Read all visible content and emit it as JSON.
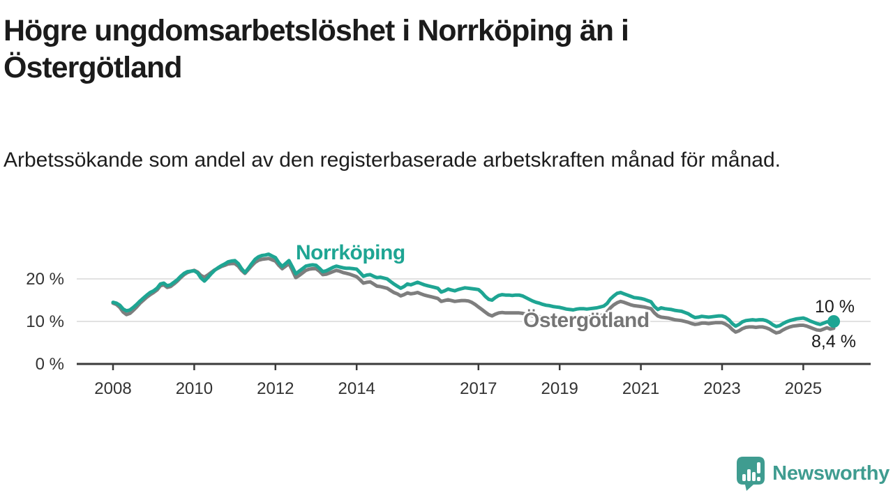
{
  "header": {
    "title": "Högre ungdomsarbetslöshet i Norrköping än i Östergötland",
    "subtitle": "Arbetssökande som andel av den registerbaserade arbetskraften månad för månad."
  },
  "chart_data": {
    "type": "line",
    "title": "Högre ungdomsarbetslöshet i Norrköping än i Östergötland",
    "subtitle": "Arbetssökande som andel av den registerbaserade arbetskraften månad för månad.",
    "x_unit": "month",
    "x_start": "2008-01",
    "x_end": "2025-10",
    "x_tick_years": [
      2008,
      2010,
      2012,
      2014,
      2017,
      2019,
      2021,
      2023,
      2025
    ],
    "y_ticks": [
      {
        "value": 0,
        "label": "0 %"
      },
      {
        "value": 10,
        "label": "10 %"
      },
      {
        "value": 20,
        "label": "20 %"
      }
    ],
    "ylim": [
      0,
      27
    ],
    "grid": "horizontal",
    "legend": "inline-labels",
    "axis_color": "#3a3a3a",
    "grid_color": "#d8d8d8",
    "series": [
      {
        "name": "Norrköping",
        "color": "#1ea593",
        "end_label": "10 %",
        "end_value": 10.0,
        "end_dot": true,
        "values": [
          14.5,
          14.3,
          13.8,
          12.9,
          12.5,
          12.7,
          13.3,
          14.0,
          14.8,
          15.5,
          16.2,
          16.8,
          17.2,
          17.8,
          18.8,
          19.0,
          18.4,
          18.6,
          19.2,
          19.8,
          20.6,
          21.3,
          21.7,
          21.8,
          21.9,
          21.4,
          20.2,
          19.5,
          20.3,
          21.2,
          22.0,
          22.6,
          23.1,
          23.5,
          24.0,
          24.2,
          24.3,
          23.6,
          22.4,
          21.5,
          22.5,
          23.6,
          24.6,
          25.2,
          25.5,
          25.6,
          25.8,
          25.4,
          25.0,
          23.8,
          22.9,
          23.6,
          24.3,
          22.8,
          21.2,
          21.8,
          22.4,
          23.0,
          23.2,
          23.3,
          23.2,
          22.5,
          21.7,
          21.9,
          22.3,
          22.7,
          23.0,
          22.8,
          22.6,
          22.5,
          22.5,
          22.4,
          22.3,
          21.5,
          20.6,
          20.9,
          21.0,
          20.6,
          20.3,
          20.4,
          20.2,
          20.0,
          19.4,
          18.8,
          18.3,
          17.8,
          18.2,
          18.8,
          18.6,
          18.9,
          19.2,
          18.9,
          18.6,
          18.4,
          18.2,
          18.0,
          17.8,
          16.9,
          17.2,
          17.6,
          17.4,
          17.2,
          17.5,
          17.7,
          17.9,
          17.8,
          17.7,
          17.6,
          17.5,
          16.8,
          15.9,
          15.2,
          15.0,
          15.6,
          16.1,
          16.3,
          16.2,
          16.2,
          16.1,
          16.2,
          16.2,
          16.0,
          15.6,
          15.2,
          14.8,
          14.5,
          14.3,
          14.0,
          13.8,
          13.7,
          13.5,
          13.4,
          13.3,
          13.1,
          12.9,
          12.8,
          12.7,
          12.9,
          13.0,
          13.0,
          12.9,
          13.0,
          13.1,
          13.2,
          13.4,
          13.6,
          14.2,
          15.3,
          16.0,
          16.6,
          16.8,
          16.5,
          16.2,
          15.9,
          15.6,
          15.5,
          15.4,
          15.2,
          14.9,
          14.6,
          13.5,
          12.8,
          13.2,
          13.0,
          12.9,
          12.8,
          12.6,
          12.5,
          12.4,
          12.1,
          11.8,
          11.3,
          10.9,
          11.0,
          11.2,
          11.1,
          11.0,
          11.1,
          11.2,
          11.3,
          11.3,
          11.0,
          10.4,
          9.5,
          8.9,
          9.3,
          9.9,
          10.2,
          10.3,
          10.4,
          10.3,
          10.4,
          10.4,
          10.2,
          9.8,
          9.2,
          8.8,
          9.0,
          9.5,
          9.9,
          10.2,
          10.4,
          10.6,
          10.7,
          10.8,
          10.5,
          10.1,
          9.8,
          9.5,
          9.3,
          9.6,
          9.9,
          9.7,
          10.0
        ]
      },
      {
        "name": "Östergötland",
        "color": "#7e7e7e",
        "end_label": "8,4 %",
        "end_value": 8.4,
        "end_dot": false,
        "values": [
          14.3,
          14.0,
          13.3,
          12.2,
          11.6,
          11.9,
          12.6,
          13.4,
          14.3,
          15.0,
          15.7,
          16.3,
          16.8,
          17.4,
          18.4,
          18.6,
          18.0,
          18.2,
          18.8,
          19.5,
          20.3,
          21.0,
          21.5,
          21.8,
          22.0,
          21.6,
          20.8,
          20.4,
          20.9,
          21.5,
          22.1,
          22.5,
          22.9,
          23.2,
          23.5,
          23.6,
          23.6,
          23.0,
          22.0,
          21.3,
          22.2,
          23.1,
          23.9,
          24.4,
          24.6,
          24.7,
          24.8,
          24.5,
          24.2,
          23.2,
          22.4,
          23.0,
          23.6,
          22.0,
          20.3,
          20.8,
          21.4,
          22.0,
          22.3,
          22.4,
          22.4,
          21.8,
          21.0,
          21.1,
          21.4,
          21.7,
          22.0,
          21.8,
          21.5,
          21.3,
          21.1,
          20.8,
          20.5,
          19.8,
          19.0,
          19.2,
          19.3,
          18.8,
          18.3,
          18.2,
          18.0,
          17.8,
          17.3,
          16.8,
          16.5,
          16.0,
          16.3,
          16.7,
          16.5,
          16.6,
          16.8,
          16.5,
          16.2,
          16.0,
          15.8,
          15.6,
          15.4,
          14.7,
          14.9,
          15.1,
          14.9,
          14.7,
          14.8,
          14.9,
          14.9,
          14.8,
          14.5,
          14.0,
          13.4,
          12.8,
          12.2,
          11.6,
          11.3,
          11.7,
          12.0,
          12.1,
          12.0,
          12.0,
          12.0,
          12.0,
          12.0,
          11.9,
          11.7,
          11.5,
          11.3,
          11.2,
          11.1,
          11.0,
          10.9,
          10.9,
          10.9,
          10.9,
          10.9,
          10.8,
          10.8,
          10.8,
          10.8,
          10.9,
          11.0,
          11.0,
          11.0,
          11.1,
          11.2,
          11.3,
          11.4,
          11.6,
          12.2,
          13.2,
          13.9,
          14.4,
          14.7,
          14.5,
          14.2,
          13.9,
          13.7,
          13.6,
          13.5,
          13.4,
          13.2,
          13.0,
          12.0,
          11.3,
          11.0,
          10.9,
          10.8,
          10.6,
          10.4,
          10.3,
          10.2,
          10.0,
          9.8,
          9.5,
          9.3,
          9.4,
          9.6,
          9.6,
          9.5,
          9.6,
          9.7,
          9.7,
          9.7,
          9.4,
          8.9,
          8.1,
          7.5,
          7.8,
          8.3,
          8.6,
          8.7,
          8.7,
          8.6,
          8.7,
          8.7,
          8.5,
          8.2,
          7.7,
          7.3,
          7.5,
          8.0,
          8.4,
          8.7,
          8.9,
          9.0,
          9.1,
          9.1,
          8.9,
          8.6,
          8.3,
          8.0,
          7.9,
          8.2,
          8.5,
          8.2,
          8.4
        ]
      }
    ]
  },
  "footer": {
    "brand": "Newsworthy",
    "brand_color": "#3f9c90",
    "logo_color": "#3f9c90"
  }
}
